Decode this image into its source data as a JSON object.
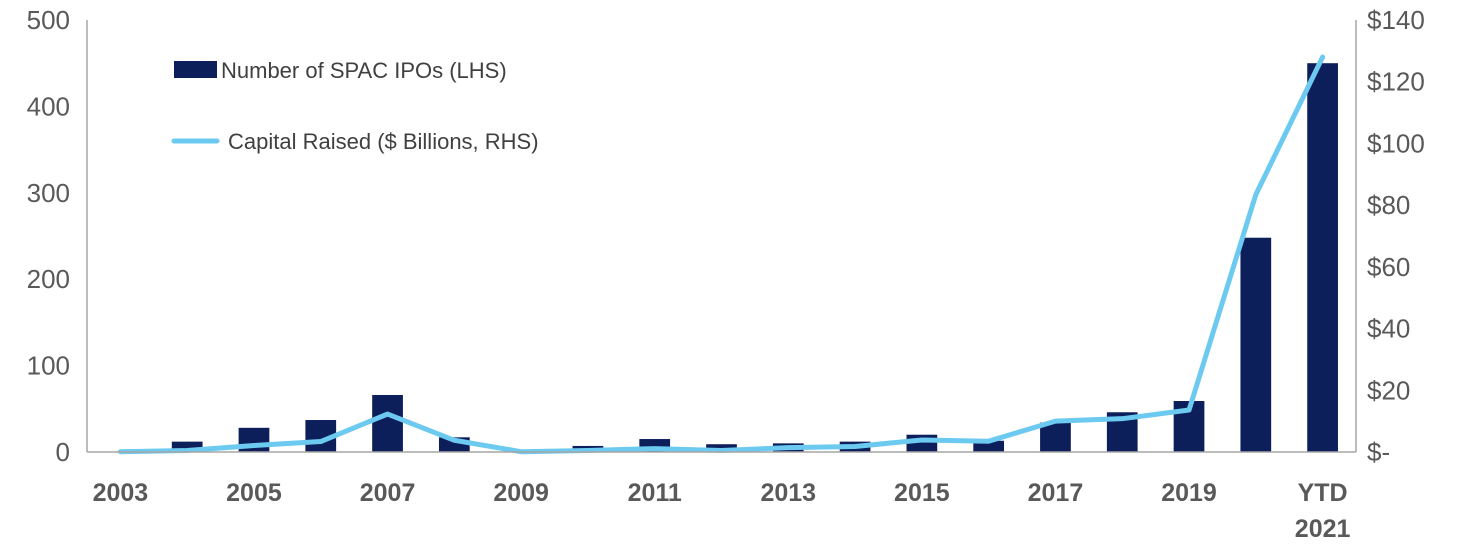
{
  "colors": {
    "bar": "#0c1f5b",
    "line": "#6ccaf0",
    "axis": "#a6a6a6",
    "text": "#595959"
  },
  "chart_data": {
    "type": "bar",
    "categories": [
      "2003",
      "2004",
      "2005",
      "2006",
      "2007",
      "2008",
      "2009",
      "2010",
      "2011",
      "2012",
      "2013",
      "2014",
      "2015",
      "2016",
      "2017",
      "2018",
      "2019",
      "2020",
      "YTD 2021"
    ],
    "x_tick_labels": [
      [
        "2003"
      ],
      [
        "2005"
      ],
      [
        "2007"
      ],
      [
        "2009"
      ],
      [
        "2011"
      ],
      [
        "2013"
      ],
      [
        "2015"
      ],
      [
        "2017"
      ],
      [
        "2019"
      ],
      [
        "YTD",
        "2021"
      ]
    ],
    "x_tick_categories": [
      "2003",
      "2005",
      "2007",
      "2009",
      "2011",
      "2013",
      "2015",
      "2017",
      "2019",
      "YTD 2021"
    ],
    "series": [
      {
        "name": "Number of SPAC IPOs (LHS)",
        "type": "bar",
        "axis": "left",
        "values": [
          0,
          12,
          28,
          37,
          66,
          17,
          1,
          7,
          15,
          9,
          10,
          12,
          20,
          13,
          34,
          46,
          59,
          248,
          450
        ]
      },
      {
        "name": "Capital Raised ($ Billions, RHS)",
        "type": "line",
        "axis": "right",
        "values": [
          0.1,
          0.5,
          2.1,
          3.4,
          12.3,
          3.8,
          0.1,
          0.5,
          1.1,
          0.5,
          1.4,
          1.8,
          3.9,
          3.5,
          10.0,
          10.8,
          13.6,
          83.4,
          128.0
        ]
      }
    ],
    "y_left": {
      "min": 0,
      "max": 500,
      "ticks": [
        "0",
        "100",
        "200",
        "300",
        "400",
        "500"
      ]
    },
    "y_right": {
      "min": 0,
      "max": 140,
      "ticks": [
        "$-",
        "$20",
        "$40",
        "$60",
        "$80",
        "$100",
        "$120",
        "$140"
      ]
    },
    "title": "",
    "xlabel": "",
    "ylabel": "",
    "grid": false,
    "legend_position": "top-left"
  }
}
